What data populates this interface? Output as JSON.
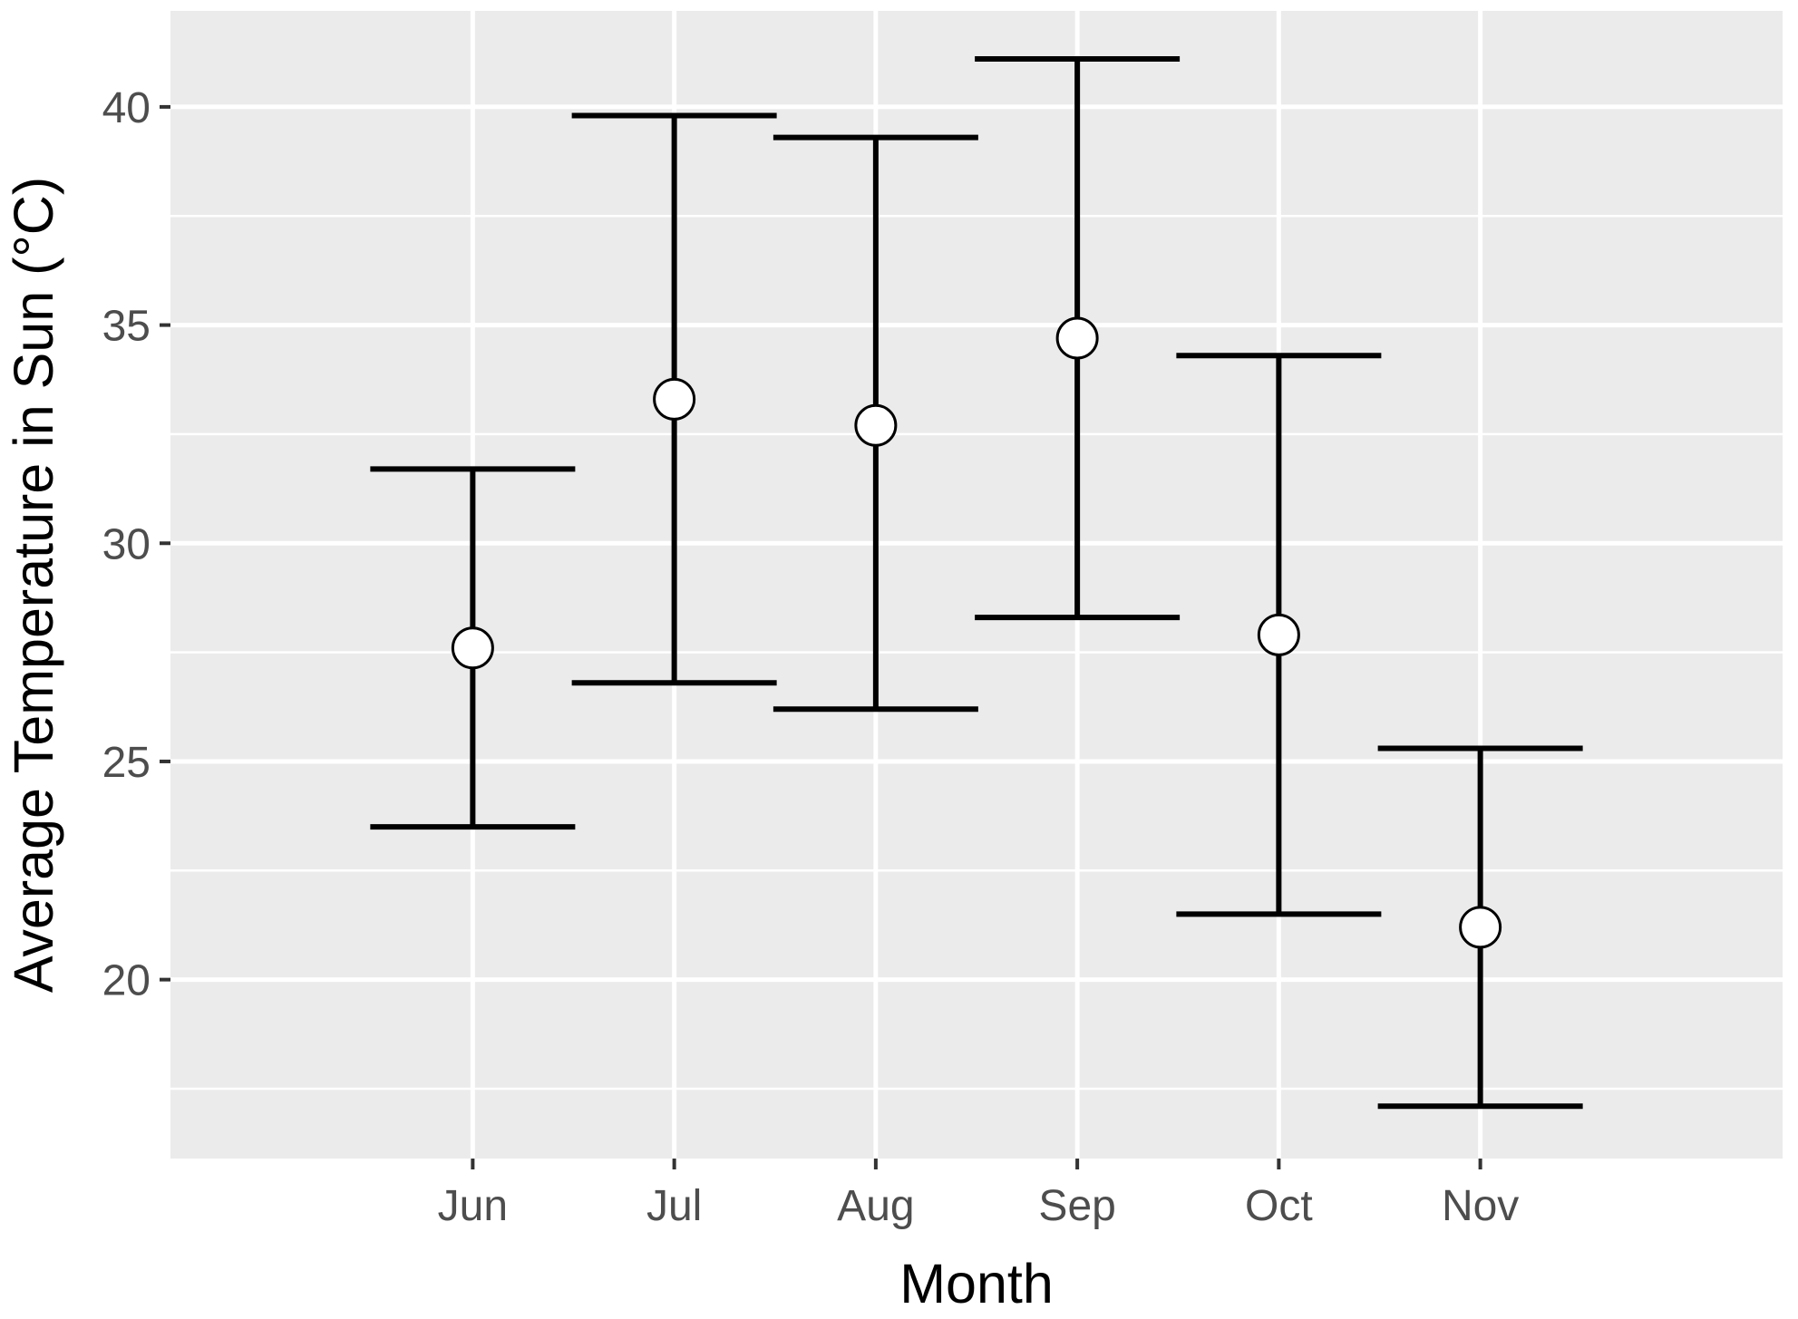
{
  "chart_data": {
    "type": "scatter",
    "subtype": "point-with-error-bars",
    "title": "",
    "xlabel": "Month",
    "ylabel": "Average Temperature in Sun (°C)",
    "categories": [
      "Jun",
      "Jul",
      "Aug",
      "Sep",
      "Oct",
      "Nov"
    ],
    "series": [
      {
        "mean": [
          27.6,
          33.3,
          32.7,
          34.7,
          27.9,
          21.2
        ],
        "lower": [
          23.5,
          26.8,
          26.2,
          28.3,
          21.5,
          17.1
        ],
        "upper": [
          31.7,
          39.8,
          39.3,
          41.1,
          34.3,
          25.3
        ]
      }
    ],
    "ylim": [
      15.9,
      42.2
    ],
    "yticks": [
      20,
      25,
      30,
      35,
      40
    ],
    "grid": true,
    "legend": "none",
    "colors": {
      "panel": "#ebebeb",
      "grid": "#ffffff",
      "errorbar": "#000000",
      "point_fill": "#ffffff",
      "point_stroke": "#000000",
      "tick_label": "#4d4d4d",
      "tick": "#333333"
    }
  }
}
